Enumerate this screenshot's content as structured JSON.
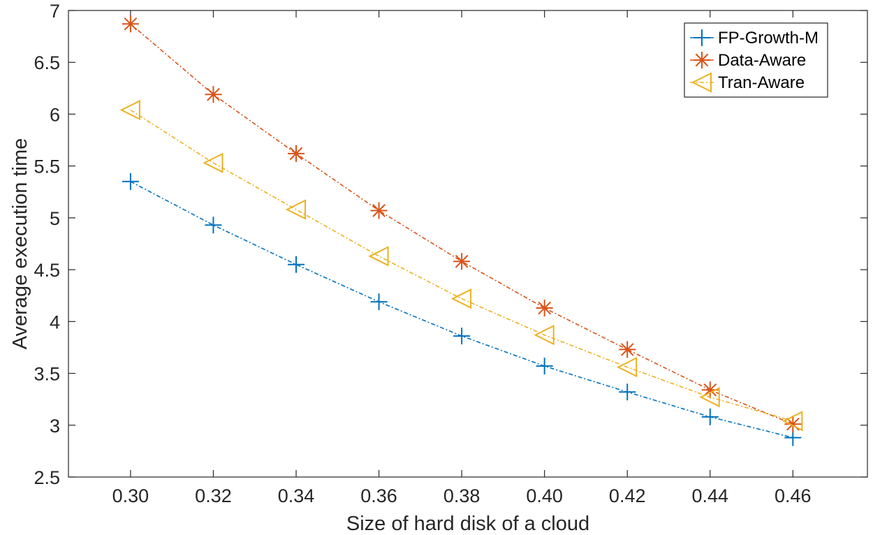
{
  "chart_data": {
    "type": "line",
    "title": "",
    "xlabel": "Size of hard disk of a cloud",
    "ylabel": "Average execution time",
    "x": [
      0.3,
      0.32,
      0.34,
      0.36,
      0.38,
      0.4,
      0.42,
      0.44,
      0.46
    ],
    "x_tick_labels": [
      "0.30",
      "0.32",
      "0.34",
      "0.36",
      "0.38",
      "0.40",
      "0.42",
      "0.44",
      "0.46"
    ],
    "xlim": [
      0.285,
      0.478
    ],
    "ylim": [
      2.5,
      7
    ],
    "y_ticks": [
      2.5,
      3,
      3.5,
      4,
      4.5,
      5,
      5.5,
      6,
      6.5,
      7
    ],
    "y_tick_labels": [
      "2.5",
      "3",
      "3.5",
      "4",
      "4.5",
      "5",
      "5.5",
      "6",
      "6.5",
      "7"
    ],
    "grid": false,
    "legend_position": "top-right",
    "series": [
      {
        "name": "FP-Growth-M",
        "marker": "plus",
        "color": "#0072BD",
        "values": [
          5.35,
          4.93,
          4.55,
          4.19,
          3.86,
          3.57,
          3.32,
          3.08,
          2.88
        ]
      },
      {
        "name": "Data-Aware",
        "marker": "asterisk",
        "color": "#D95319",
        "values": [
          6.87,
          6.19,
          5.62,
          5.07,
          4.58,
          4.13,
          3.73,
          3.34,
          3.01
        ]
      },
      {
        "name": "Tran-Aware",
        "marker": "triangle-left",
        "color": "#EDB120",
        "values": [
          6.04,
          5.53,
          5.08,
          4.63,
          4.22,
          3.87,
          3.56,
          3.27,
          3.04
        ]
      }
    ]
  }
}
